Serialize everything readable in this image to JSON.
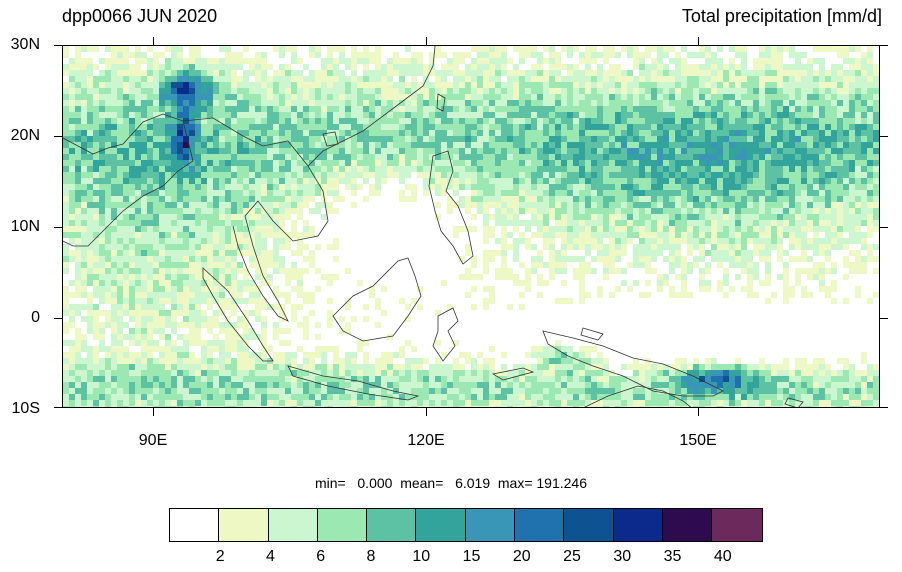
{
  "title_left": "dpp0066 JUN 2020",
  "title_right": "Total precipitation [mm/d]",
  "lat_labels": [
    "30N",
    "20N",
    "10N",
    "0",
    "10S"
  ],
  "lon_labels": [
    "90E",
    "120E",
    "150E"
  ],
  "stats": {
    "text": "min=   0.000  mean=   6.019  max= 191.246",
    "min": 0.0,
    "mean": 6.019,
    "max": 191.246
  },
  "colorbar": {
    "labels": [
      "2",
      "4",
      "6",
      "8",
      "10",
      "15",
      "20",
      "25",
      "30",
      "35",
      "40"
    ],
    "colors": [
      "#ffffff",
      "#edf8c4",
      "#ccf6d0",
      "#9be8b3",
      "#5cc2a3",
      "#32a49c",
      "#3996b6",
      "#1f72ad",
      "#0f5292",
      "#0c2a8c",
      "#2d0b4e",
      "#6b2a5c"
    ]
  },
  "map": {
    "region": {
      "lon_min": 80,
      "lon_max": 170,
      "lat_min": -10,
      "lat_max": 30
    },
    "ocean_color": "#ffffff",
    "coastline_color": "#333333"
  }
}
